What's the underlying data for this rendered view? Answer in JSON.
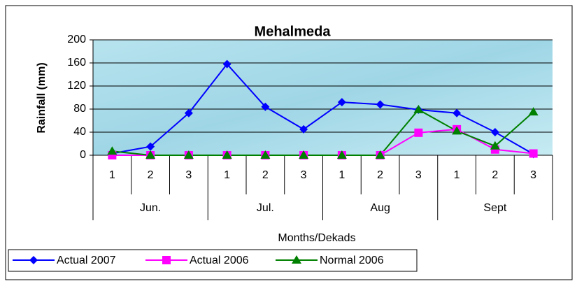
{
  "chart_data": {
    "type": "line",
    "title": "Mehalmeda",
    "x_label": "Months/Dekads",
    "y_label": "Rainfall (mm)",
    "categories": [
      "1",
      "2",
      "3",
      "1",
      "2",
      "3",
      "1",
      "2",
      "3",
      "1",
      "2",
      "3"
    ],
    "category_groups": [
      "Jun.",
      "Jul.",
      "Aug",
      "Sept"
    ],
    "series": [
      {
        "name": "Actual 2007",
        "color": "#0000ff",
        "marker": "diamond",
        "values": [
          3,
          15,
          73,
          158,
          84,
          45,
          92,
          88,
          79,
          73,
          40,
          2
        ]
      },
      {
        "name": "Actual 2006",
        "color": "#ff00ff",
        "marker": "square",
        "values": [
          0,
          0,
          0,
          0,
          0,
          0,
          0,
          0,
          39,
          45,
          10,
          3
        ]
      },
      {
        "name": "Normal 2006",
        "color": "#008000",
        "marker": "triangle",
        "values": [
          7,
          0,
          0,
          0,
          0,
          0,
          0,
          0,
          79,
          42,
          16,
          75
        ]
      }
    ],
    "ylim": [
      0,
      200
    ],
    "yticks": [
      0,
      40,
      80,
      120,
      160,
      200
    ],
    "grid": true,
    "legend": "bottom-left"
  }
}
